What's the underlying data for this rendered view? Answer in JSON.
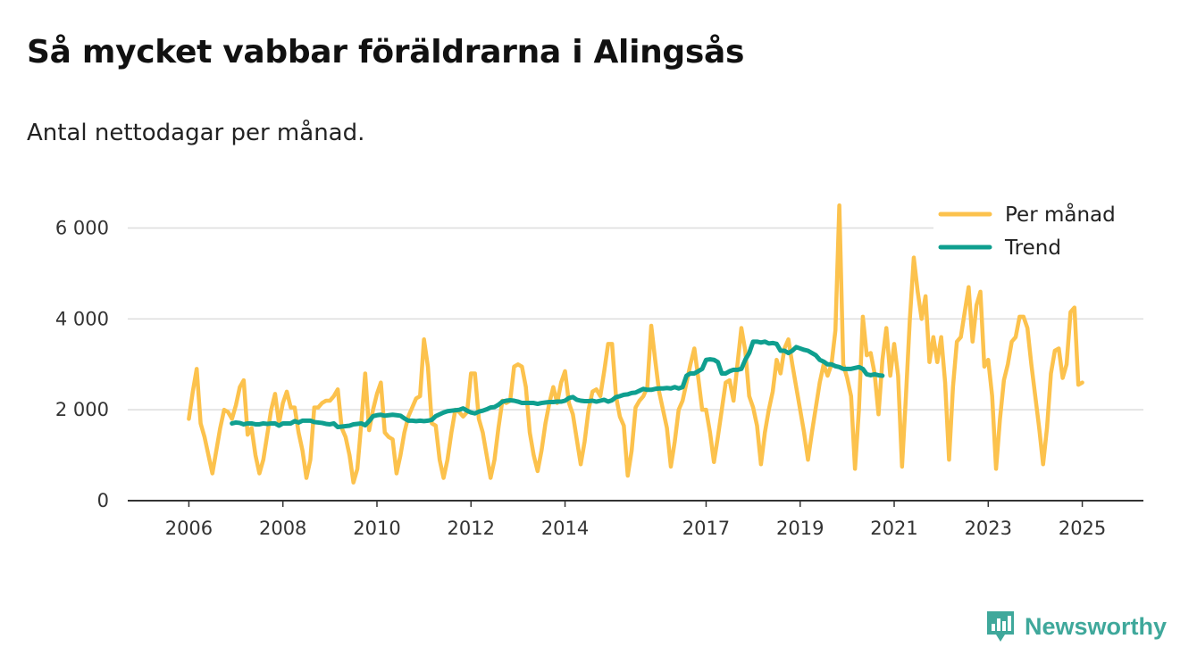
{
  "title": "Så mycket vabbar föräldrarna i Alingsås",
  "subtitle": "Antal nettodagar per månad.",
  "brand": {
    "name": "Newsworthy",
    "logo_icon": "newsworthy-logo-icon"
  },
  "colors": {
    "monthly": "#fcc24d",
    "trend": "#0f9f8f",
    "grid": "#dddddd",
    "axis": "#333333"
  },
  "chart_data": {
    "type": "line",
    "title": "Så mycket vabbar föräldrarna i Alingsås",
    "subtitle": "Antal nettodagar per månad.",
    "xlabel": "",
    "ylabel": "",
    "x_start": 2006.0,
    "x_step_months": 1,
    "xlim": [
      2004.7,
      2026.3
    ],
    "ylim": [
      0,
      6600
    ],
    "yticks": [
      0,
      2000,
      4000,
      6000
    ],
    "ytick_labels": [
      "0",
      "2 000",
      "4 000",
      "6 000"
    ],
    "xticks": [
      2006,
      2008,
      2010,
      2012,
      2014,
      2017,
      2019,
      2021,
      2023,
      2025
    ],
    "xtick_labels": [
      "2006",
      "2008",
      "2010",
      "2012",
      "2014",
      "2017",
      "2019",
      "2021",
      "2023",
      "2025"
    ],
    "grid": true,
    "legend_position": "top-right",
    "series": [
      {
        "name": "Per månad",
        "start": 2006.0,
        "values": [
          1800,
          2400,
          2900,
          1700,
          1400,
          1000,
          600,
          1100,
          1600,
          2000,
          1950,
          1800,
          2100,
          2500,
          2650,
          1450,
          1600,
          1000,
          600,
          900,
          1450,
          2000,
          2350,
          1700,
          2150,
          2400,
          2050,
          2050,
          1500,
          1100,
          500,
          900,
          2050,
          2050,
          2150,
          2200,
          2200,
          2300,
          2450,
          1600,
          1400,
          1000,
          400,
          700,
          1700,
          2800,
          1550,
          2000,
          2350,
          2600,
          1500,
          1400,
          1350,
          600,
          1000,
          1500,
          1850,
          2050,
          2250,
          2300,
          3550,
          2950,
          1700,
          1650,
          900,
          500,
          900,
          1500,
          2000,
          1950,
          1850,
          1950,
          2800,
          2800,
          1800,
          1500,
          1000,
          500,
          900,
          1600,
          2200,
          2150,
          2200,
          2950,
          3000,
          2950,
          2500,
          1500,
          1000,
          650,
          1100,
          1700,
          2150,
          2500,
          2150,
          2600,
          2850,
          2150,
          1900,
          1350,
          800,
          1300,
          2000,
          2400,
          2450,
          2300,
          2850,
          3450,
          3450,
          2300,
          1850,
          1650,
          550,
          1100,
          2050,
          2200,
          2300,
          2500,
          3850,
          3100,
          2400,
          2000,
          1600,
          750,
          1300,
          2000,
          2200,
          2600,
          3000,
          3350,
          2700,
          2000,
          2000,
          1500,
          850,
          1400,
          2000,
          2600,
          2650,
          2200,
          3000,
          3800,
          3300,
          2300,
          2050,
          1650,
          800,
          1500,
          2000,
          2400,
          3100,
          2800,
          3350,
          3550,
          3000,
          2500,
          2000,
          1500,
          900,
          1500,
          2050,
          2600,
          3000,
          2750,
          3000,
          3750,
          6500,
          3000,
          2700,
          2300,
          700,
          2000,
          4050,
          3200,
          3250,
          2800,
          1900,
          3100,
          3800,
          2750,
          3450,
          2750,
          750,
          2300,
          4000,
          5350,
          4600,
          4000,
          4500,
          3050,
          3600,
          3050,
          3600,
          2600,
          900,
          2500,
          3500,
          3600,
          4150,
          4700,
          3500,
          4300,
          4600,
          2950,
          3100,
          2300,
          700,
          1800,
          2650,
          3000,
          3500,
          3600,
          4050,
          4050,
          3800,
          3000,
          2300,
          1600,
          800,
          1600,
          2800,
          3300,
          3350,
          2700,
          3000,
          4150,
          4250,
          2550,
          2600
        ]
      },
      {
        "name": "Trend",
        "start": 2006.9167,
        "values": [
          1700,
          1720,
          1710,
          1680,
          1700,
          1700,
          1680,
          1680,
          1700,
          1690,
          1700,
          1700,
          1650,
          1700,
          1700,
          1700,
          1750,
          1720,
          1760,
          1760,
          1760,
          1730,
          1720,
          1710,
          1690,
          1680,
          1700,
          1620,
          1630,
          1640,
          1650,
          1680,
          1690,
          1700,
          1660,
          1750,
          1860,
          1880,
          1890,
          1870,
          1880,
          1890,
          1880,
          1870,
          1810,
          1760,
          1760,
          1750,
          1760,
          1750,
          1760,
          1780,
          1860,
          1900,
          1940,
          1970,
          1980,
          1990,
          2000,
          2030,
          1980,
          1940,
          1920,
          1960,
          1980,
          2010,
          2050,
          2060,
          2110,
          2180,
          2200,
          2210,
          2200,
          2180,
          2150,
          2150,
          2150,
          2150,
          2130,
          2150,
          2160,
          2170,
          2170,
          2180,
          2180,
          2200,
          2260,
          2280,
          2220,
          2200,
          2190,
          2190,
          2200,
          2180,
          2200,
          2220,
          2180,
          2210,
          2280,
          2300,
          2330,
          2340,
          2370,
          2380,
          2420,
          2460,
          2440,
          2440,
          2460,
          2470,
          2470,
          2480,
          2470,
          2500,
          2470,
          2500,
          2750,
          2800,
          2800,
          2850,
          2900,
          3100,
          3110,
          3100,
          3050,
          2800,
          2800,
          2850,
          2880,
          2880,
          2900,
          3100,
          3250,
          3500,
          3500,
          3480,
          3500,
          3460,
          3470,
          3450,
          3300,
          3300,
          3250,
          3300,
          3380,
          3350,
          3320,
          3300,
          3250,
          3200,
          3100,
          3060,
          3000,
          3000,
          2960,
          2940,
          2900,
          2900,
          2900,
          2920,
          2940,
          2900,
          2780,
          2760,
          2780,
          2760,
          2750
        ]
      }
    ]
  }
}
